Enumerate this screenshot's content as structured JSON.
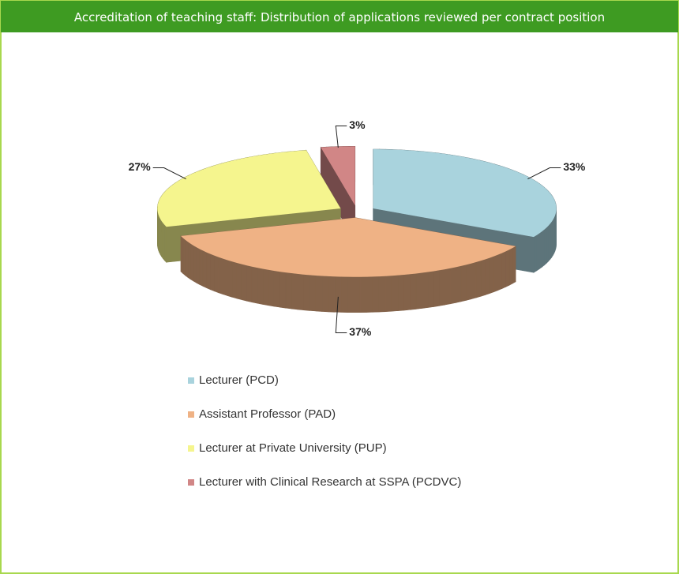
{
  "chart_data": {
    "type": "pie3d",
    "title": "Accreditation of teaching staff: Distribution of applications  reviewed per contract position",
    "categories": [
      "Lecturer (PCD)",
      "Assistant Professor (PAD)",
      "Lecturer at Private University (PUP)",
      "Lecturer with Clinical Research at SSPA (PCDVC)"
    ],
    "values": [
      33,
      37,
      27,
      3
    ],
    "value_labels": [
      "33%",
      "37%",
      "27%",
      "3%"
    ],
    "colors": [
      "#a9d3dd",
      "#efb285",
      "#f5f58e",
      "#d18686"
    ],
    "legend": "bottom"
  }
}
